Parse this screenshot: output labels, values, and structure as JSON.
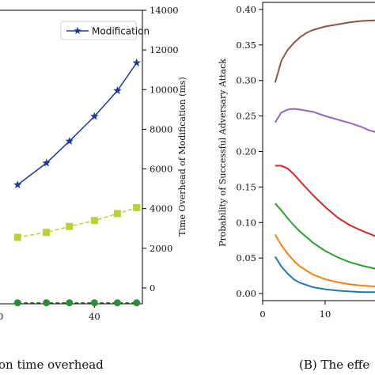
{
  "colors": {
    "modification": "#1f3a93",
    "squares": "#bcd036",
    "circles": "#2e8b3a",
    "curve_brown": "#8c564b",
    "curve_purple": "#9467bd",
    "curve_red": "#d62728",
    "curve_green": "#2ca02c",
    "curve_orange": "#ff7f0e",
    "curve_blue": "#1f77b4"
  },
  "chart_data": [
    {
      "type": "line",
      "caption": "on time overhead",
      "ylabel": "Time Overhead of Modification (ms)",
      "ylim": [
        -800,
        14000
      ],
      "xlim": [
        -10,
        65
      ],
      "x_ticks": [
        "40"
      ],
      "y_ticks": [
        "0",
        "2000",
        "4000",
        "6000",
        "8000",
        "10000",
        "12000",
        "14000"
      ],
      "legend": {
        "position": "top-right",
        "entries": [
          "Modification"
        ]
      },
      "series": [
        {
          "name": "Modification",
          "marker": "star",
          "linestyle": "solid",
          "x": [
            0,
            15,
            27,
            40,
            52,
            62
          ],
          "y": [
            5200,
            6300,
            7400,
            8650,
            9950,
            11350
          ]
        },
        {
          "marker": "square",
          "linestyle": "dashed",
          "x": [
            0,
            15,
            27,
            40,
            52,
            62
          ],
          "y": [
            2550,
            2800,
            3100,
            3400,
            3750,
            4050
          ]
        },
        {
          "marker": "circle",
          "linestyle": "dashed",
          "x": [
            0,
            15,
            27,
            40,
            52,
            62
          ],
          "y": [
            -750,
            -750,
            -750,
            -750,
            -750,
            -750
          ]
        }
      ]
    },
    {
      "type": "line",
      "caption": "(B)  The effe",
      "ylabel": "Probability of Successful Adversary Attack",
      "ylim": [
        -0.01,
        0.41
      ],
      "xlim": [
        0,
        19
      ],
      "x_ticks": [
        "0",
        "10"
      ],
      "y_ticks": [
        "0.00",
        "0.05",
        "0.10",
        "0.15",
        "0.20",
        "0.25",
        "0.30",
        "0.35",
        "0.40"
      ],
      "series": [
        {
          "color": "curve_brown",
          "x": [
            2,
            3,
            4,
            5,
            6,
            7,
            8,
            10,
            12,
            14,
            16,
            19
          ],
          "y": [
            0.297,
            0.328,
            0.343,
            0.353,
            0.361,
            0.367,
            0.371,
            0.376,
            0.379,
            0.382,
            0.384,
            0.385
          ]
        },
        {
          "color": "curve_purple",
          "x": [
            2,
            3,
            4,
            5,
            6,
            8,
            10,
            12,
            14,
            16,
            17,
            19
          ],
          "y": [
            0.241,
            0.255,
            0.259,
            0.26,
            0.259,
            0.256,
            0.25,
            0.245,
            0.24,
            0.234,
            0.23,
            0.225
          ]
        },
        {
          "color": "curve_red",
          "x": [
            2,
            3,
            4,
            5,
            6,
            8,
            10,
            12,
            14,
            16,
            18,
            19
          ],
          "y": [
            0.18,
            0.18,
            0.176,
            0.168,
            0.158,
            0.139,
            0.122,
            0.107,
            0.096,
            0.088,
            0.081,
            0.079
          ]
        },
        {
          "color": "curve_green",
          "x": [
            2,
            3,
            4,
            5,
            6,
            8,
            10,
            12,
            14,
            16,
            18,
            19
          ],
          "y": [
            0.127,
            0.117,
            0.106,
            0.096,
            0.087,
            0.072,
            0.06,
            0.051,
            0.044,
            0.039,
            0.035,
            0.033
          ]
        },
        {
          "color": "curve_orange",
          "x": [
            2,
            3,
            4,
            5,
            6,
            8,
            10,
            12,
            14,
            16,
            18,
            19
          ],
          "y": [
            0.083,
            0.068,
            0.056,
            0.046,
            0.038,
            0.027,
            0.02,
            0.016,
            0.013,
            0.011,
            0.01,
            0.009
          ]
        },
        {
          "color": "curve_blue",
          "x": [
            2,
            3,
            4,
            5,
            6,
            8,
            10,
            12,
            14,
            16,
            18,
            19
          ],
          "y": [
            0.052,
            0.038,
            0.028,
            0.02,
            0.015,
            0.009,
            0.006,
            0.004,
            0.003,
            0.002,
            0.002,
            0.002
          ]
        }
      ]
    }
  ]
}
